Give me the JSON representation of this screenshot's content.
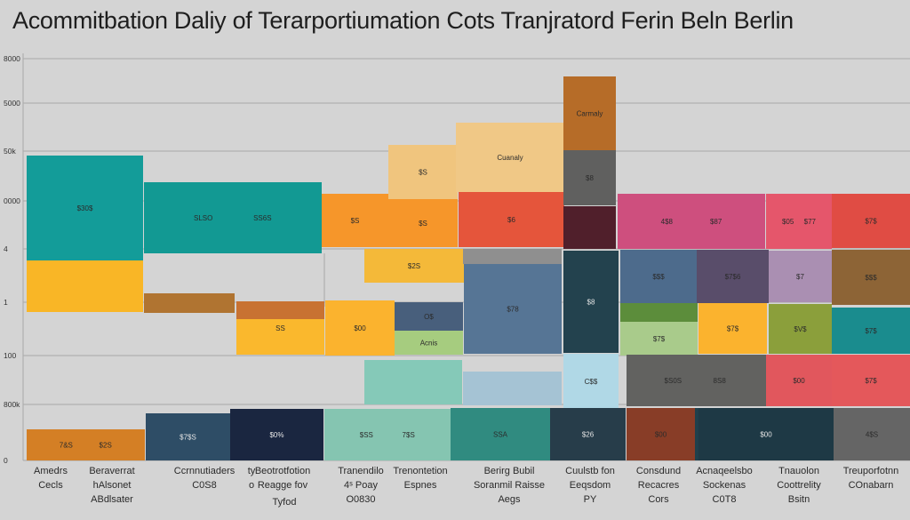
{
  "chart_data": {
    "type": "bar",
    "title": "Acommitbation Daliy of Terarportiumation Cots Tranjratord Ferin Beln Berlin",
    "xlabel": "",
    "ylabel": "",
    "y_tick_labels": [
      "0",
      "800k",
      "100",
      "1",
      "4",
      "0000",
      "50k",
      "5000",
      "8000"
    ],
    "grid": true,
    "legend": "none",
    "categories": [
      {
        "lines": [
          "Amedrs",
          "Cecls"
        ]
      },
      {
        "lines": [
          "Beraverrat",
          "hAlsonet",
          "ABdlsater"
        ]
      },
      {
        "lines": [
          "Ccrnnutiaders",
          "C0S8"
        ]
      },
      {
        "lines": [
          "ty",
          "o"
        ]
      },
      {
        "lines": [
          "Beotrotfotion",
          "Reagge fov"
        ]
      },
      {
        "lines": [
          "Tyfod"
        ]
      },
      {
        "lines": [
          "Tranendilo",
          "4ˢ Poay",
          "O0830"
        ]
      },
      {
        "lines": [
          "Trenontetion",
          "Espnes"
        ]
      },
      {
        "lines": [
          "Berirg Bubil",
          "Soranmil Raisse",
          "Aegs"
        ]
      },
      {
        "lines": [
          "Cuulstb fon",
          "Eeqsdom",
          "PY"
        ]
      },
      {
        "lines": [
          "Consdund",
          "Recacres",
          "Cors"
        ]
      },
      {
        "lines": [
          "Acnaqeelsbo",
          "Sockenas",
          "C0T8"
        ]
      },
      {
        "lines": [
          "Tnauolon",
          "Coottrelity",
          "Bsitn"
        ]
      },
      {
        "lines": [
          "Treuporfotnn",
          "COnabarn"
        ]
      }
    ],
    "segments": [
      {
        "color": "#d47f25",
        "labels": [
          "7&S",
          "$2S"
        ]
      },
      {
        "color": "#f9b626",
        "labels": []
      },
      {
        "color": "#139c99",
        "labels": [
          "$30$"
        ]
      },
      {
        "color": "#b07431",
        "labels": []
      },
      {
        "color": "#129993",
        "labels": [
          "SLSO",
          "SS6S"
        ]
      },
      {
        "color": "#2e4d66",
        "labels": [
          "$7$S"
        ]
      },
      {
        "color": "#1a2640",
        "labels": [
          "$0%"
        ]
      },
      {
        "color": "#fab82d",
        "labels": [
          "SS"
        ]
      },
      {
        "color": "#c87232",
        "labels": []
      },
      {
        "color": "#85c5b1",
        "labels": [
          "$SS",
          "7$S"
        ]
      },
      {
        "color": "#fbb32e",
        "labels": [
          "$00"
        ]
      },
      {
        "color": "#f6962a",
        "labels": [
          "$S"
        ]
      },
      {
        "color": "#85c9b8",
        "labels": []
      },
      {
        "color": "#f6962a",
        "labels": [
          "$S"
        ]
      },
      {
        "color": "#f4b939",
        "labels": [
          "$2S"
        ]
      },
      {
        "color": "#f0c57e",
        "labels": [
          "$S"
        ]
      },
      {
        "color": "#485f7c",
        "labels": [
          "O$"
        ]
      },
      {
        "color": "#a6cc7f",
        "labels": [
          "Acnis"
        ]
      },
      {
        "color": "#308b80",
        "labels": [
          "SSA"
        ]
      },
      {
        "color": "#f0c886",
        "labels": [
          "Cuanaly"
        ]
      },
      {
        "color": "#e5553b",
        "labels": [
          "$6"
        ]
      },
      {
        "color": "#8f8f8f",
        "labels": []
      },
      {
        "color": "#567595",
        "labels": [
          "$78"
        ]
      },
      {
        "color": "#a5c3d4",
        "labels": []
      },
      {
        "color": "#b66c28",
        "labels": [
          "Carmaly"
        ]
      },
      {
        "color": "#60605f",
        "labels": [
          "$8"
        ]
      },
      {
        "color": "#501f2b",
        "labels": []
      },
      {
        "color": "#23424e",
        "labels": [
          "$8"
        ]
      },
      {
        "color": "#b0d8e6",
        "labels": [
          "C$$"
        ]
      },
      {
        "color": "#273d4a",
        "labels": [
          "$26"
        ]
      },
      {
        "color": "#ce4f7e",
        "labels": [
          "4$8",
          "$87"
        ]
      },
      {
        "color": "#4d6b8c",
        "labels": [
          "$$$"
        ]
      },
      {
        "color": "#8b5d49",
        "labels": []
      },
      {
        "color": "#5c8d3b",
        "labels": []
      },
      {
        "color": "#a9cb8b",
        "labels": [
          "$7$"
        ]
      },
      {
        "color": "#626260",
        "labels": [
          "$S0S",
          "8S8"
        ]
      },
      {
        "color": "#883d27",
        "labels": [
          "$00"
        ]
      },
      {
        "color": "#1f404c",
        "labels": [
          "$7S"
        ]
      },
      {
        "color": "#594d6a",
        "labels": [
          "$7$6"
        ]
      },
      {
        "color": "#fbb32e",
        "labels": [
          "$7$"
        ]
      },
      {
        "color": "#1e3945",
        "labels": [
          "$00"
        ]
      },
      {
        "color": "#e5566b",
        "labels": [
          "$05",
          "$77"
        ]
      },
      {
        "color": "#aa8fb2",
        "labels": [
          "$7"
        ]
      },
      {
        "color": "#8b9f3b",
        "labels": [
          "$V$"
        ]
      },
      {
        "color": "#e1575d",
        "labels": [
          "$00"
        ]
      },
      {
        "color": "#e04c44",
        "labels": [
          "$7$"
        ]
      },
      {
        "color": "#8d6436",
        "labels": [
          "$$$"
        ]
      },
      {
        "color": "#1a8c8e",
        "labels": [
          "$7$"
        ]
      },
      {
        "color": "#e4585b",
        "labels": [
          "$7$"
        ]
      },
      {
        "color": "#656565",
        "labels": [
          "4$S"
        ]
      }
    ]
  }
}
